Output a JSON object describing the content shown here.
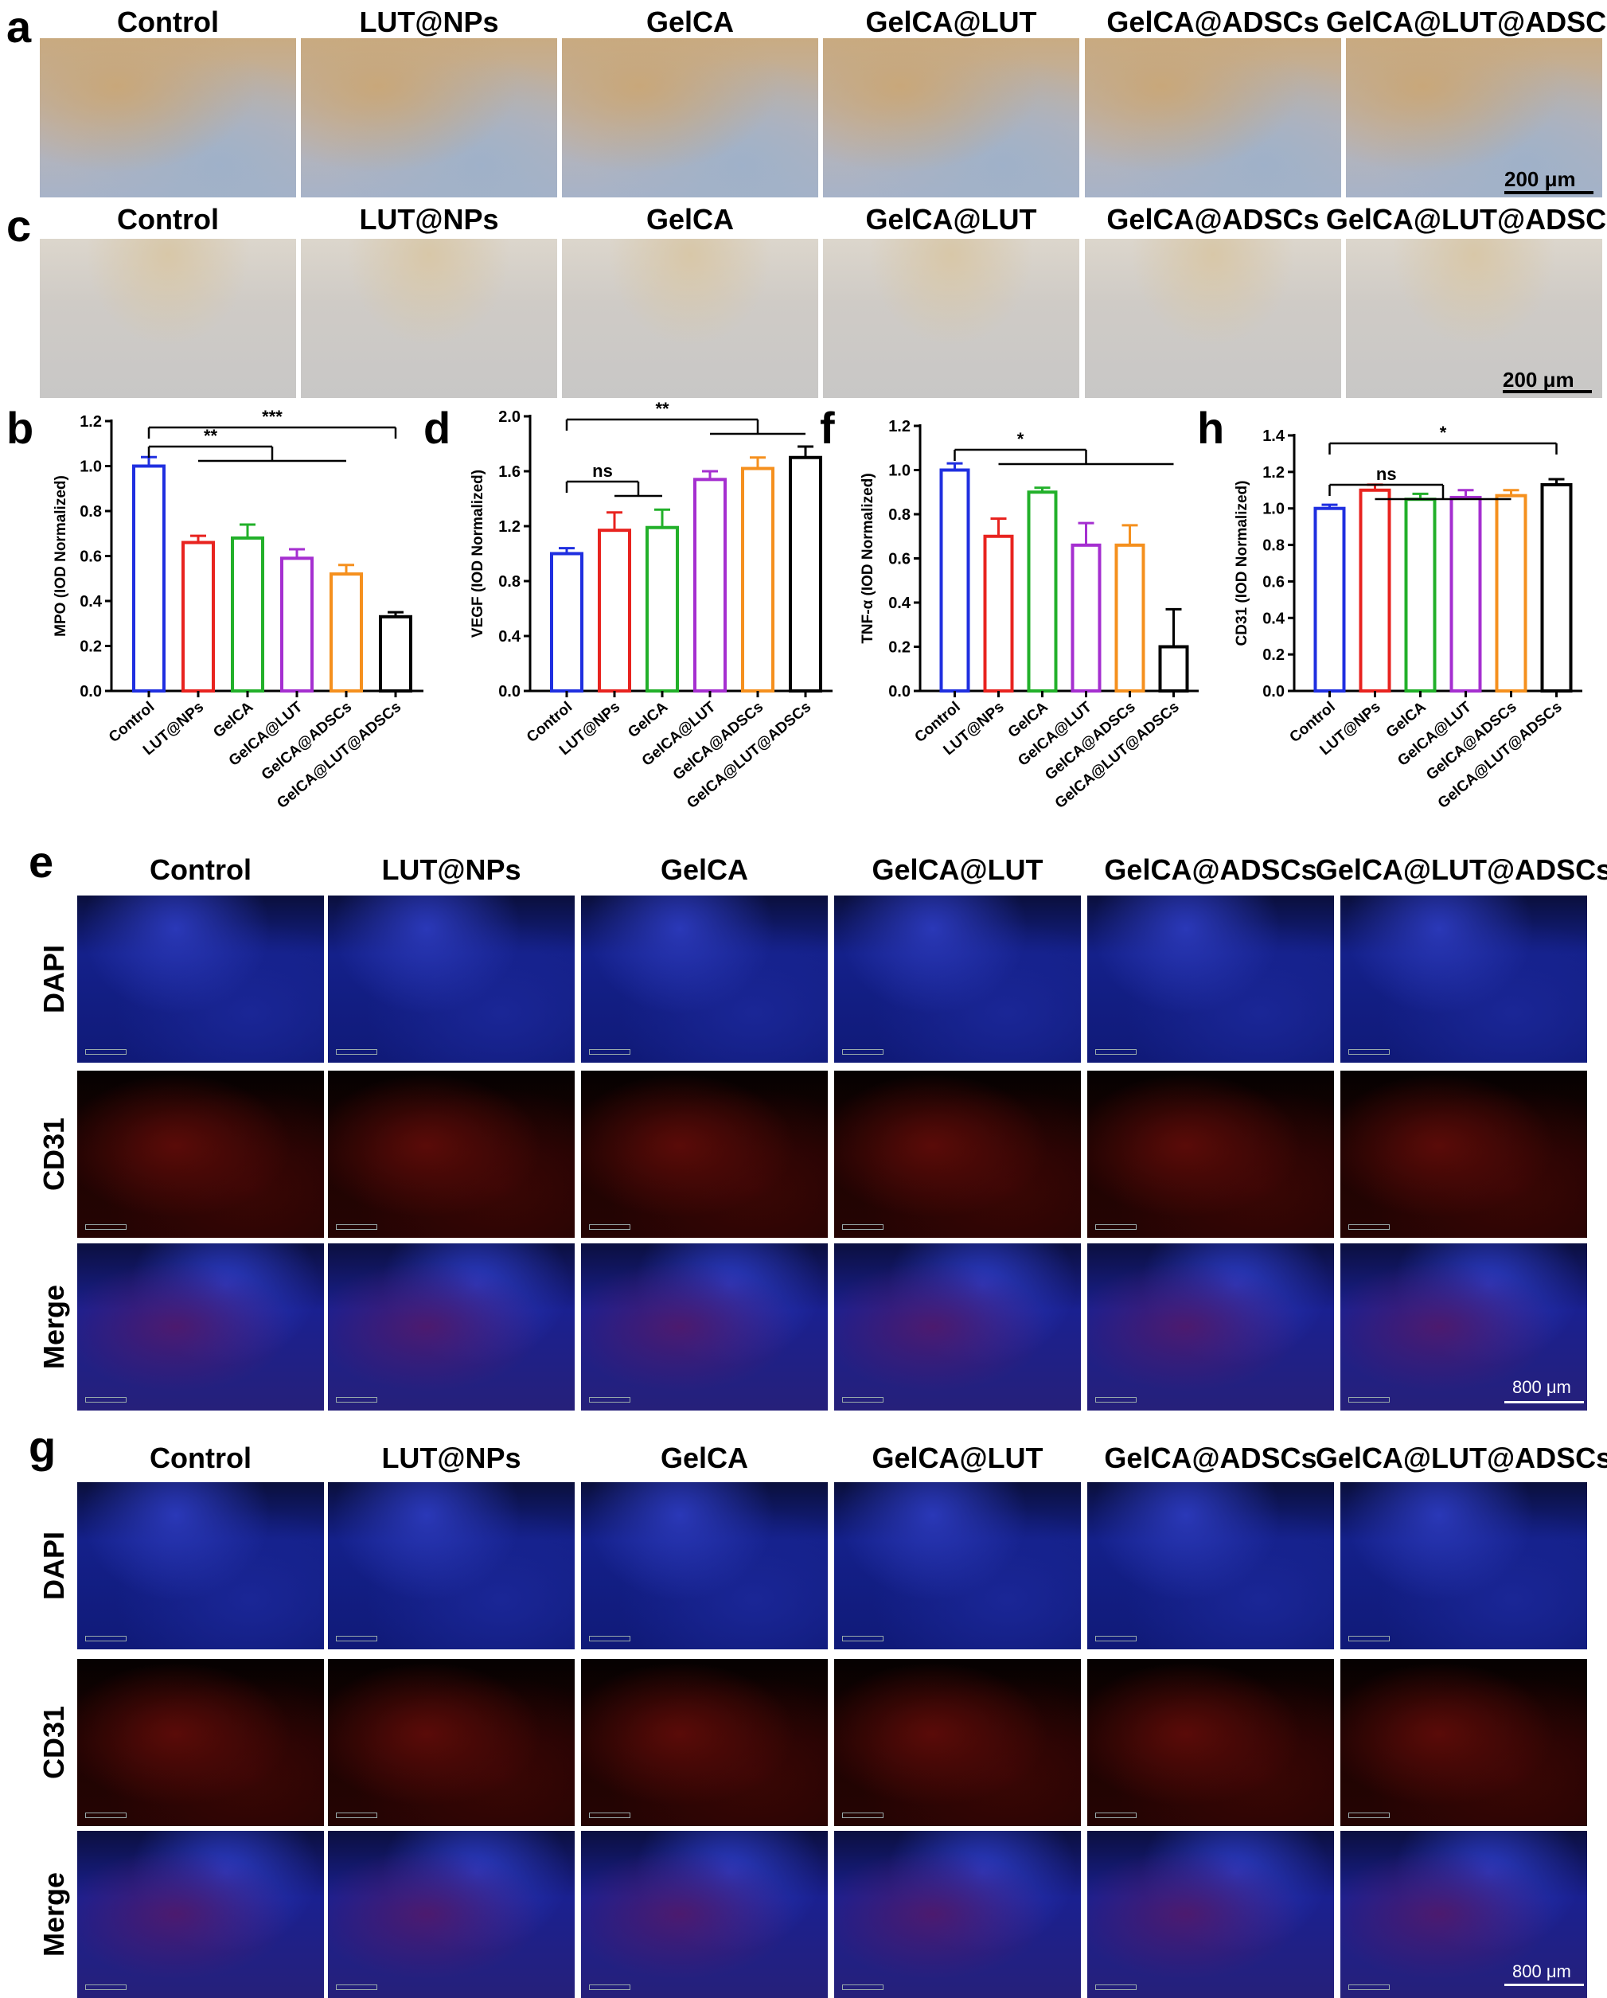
{
  "panels": {
    "a": "a",
    "b": "b",
    "c": "c",
    "d": "d",
    "e": "e",
    "f": "f",
    "g": "g",
    "h": "h"
  },
  "groups": [
    "Control",
    "LUT@NPs",
    "GelCA",
    "GelCA@LUT",
    "GelCA@ADSCs",
    "GelCA@LUT@ADSCs"
  ],
  "row_labels": [
    "DAPI",
    "CD31",
    "Merge"
  ],
  "scalebars": {
    "ihc": "200 μm",
    "fluor": "800 μm"
  },
  "colors": {
    "Control": "#1f2fe0",
    "LUT@NPs": "#e8231f",
    "GelCA": "#22b02a",
    "GelCA@LUT": "#a52fd0",
    "GelCA@ADSCs": "#f5901e",
    "GelCA@LUT@ADSCs": "#000000"
  },
  "chart_data": [
    {
      "panel": "b",
      "type": "bar",
      "categories": [
        "Control",
        "LUT@NPs",
        "GelCA",
        "GelCA@LUT",
        "GelCA@ADSCs",
        "GelCA@LUT@ADSCs"
      ],
      "values": [
        1.0,
        0.66,
        0.68,
        0.59,
        0.52,
        0.33
      ],
      "errors": [
        0.04,
        0.03,
        0.06,
        0.04,
        0.04,
        0.02
      ],
      "ylabel": "MPO (IOD Normalized)",
      "ylim": [
        0.0,
        1.2
      ],
      "yticks": [
        "0.0",
        "0.2",
        "0.4",
        "0.6",
        "0.8",
        "1.0",
        "1.2"
      ],
      "significance": [
        {
          "label": "***",
          "from": 0,
          "to": [
            5
          ]
        },
        {
          "label": "**",
          "from": 0,
          "to": [
            1,
            4
          ]
        }
      ]
    },
    {
      "panel": "d",
      "type": "bar",
      "categories": [
        "Control",
        "LUT@NPs",
        "GelCA",
        "GelCA@LUT",
        "GelCA@ADSCs",
        "GelCA@LUT@ADSCs"
      ],
      "values": [
        1.0,
        1.17,
        1.19,
        1.54,
        1.62,
        1.7
      ],
      "errors": [
        0.04,
        0.13,
        0.13,
        0.06,
        0.08,
        0.08
      ],
      "ylabel": "VEGF (IOD Normalized)",
      "ylim": [
        0.0,
        2.0
      ],
      "yticks": [
        "0.0",
        "0.4",
        "0.8",
        "1.2",
        "1.6",
        "2.0"
      ],
      "significance": [
        {
          "label": "**",
          "from": 0,
          "to": [
            3,
            5
          ]
        },
        {
          "label": "ns",
          "from": 0,
          "to": [
            1,
            2
          ]
        }
      ]
    },
    {
      "panel": "f",
      "type": "bar",
      "categories": [
        "Control",
        "LUT@NPs",
        "GelCA",
        "GelCA@LUT",
        "GelCA@ADSCs",
        "GelCA@LUT@ADSCs"
      ],
      "values": [
        1.0,
        0.7,
        0.9,
        0.66,
        0.66,
        0.2
      ],
      "errors": [
        0.03,
        0.08,
        0.02,
        0.1,
        0.09,
        0.17
      ],
      "ylabel": "TNF-α (IOD Normalized)",
      "ylim": [
        0.0,
        1.2
      ],
      "yticks": [
        "0.0",
        "0.2",
        "0.4",
        "0.6",
        "0.8",
        "1.0",
        "1.2"
      ],
      "significance": [
        {
          "label": "*",
          "from": 0,
          "to": [
            1,
            5
          ]
        }
      ]
    },
    {
      "panel": "h",
      "type": "bar",
      "categories": [
        "Control",
        "LUT@NPs",
        "GelCA",
        "GelCA@LUT",
        "GelCA@ADSCs",
        "GelCA@LUT@ADSCs"
      ],
      "values": [
        1.0,
        1.1,
        1.05,
        1.06,
        1.07,
        1.13
      ],
      "errors": [
        0.02,
        0.03,
        0.03,
        0.04,
        0.03,
        0.03
      ],
      "ylabel": "CD31 (IOD Normalized)",
      "ylim": [
        0.0,
        1.4
      ],
      "yticks": [
        "0.0",
        "0.2",
        "0.4",
        "0.6",
        "0.8",
        "1.0",
        "1.2",
        "1.4"
      ],
      "significance": [
        {
          "label": "*",
          "from": 0,
          "to": [
            5
          ]
        },
        {
          "label": "ns",
          "from": 0,
          "to": [
            1,
            4
          ]
        }
      ]
    }
  ]
}
